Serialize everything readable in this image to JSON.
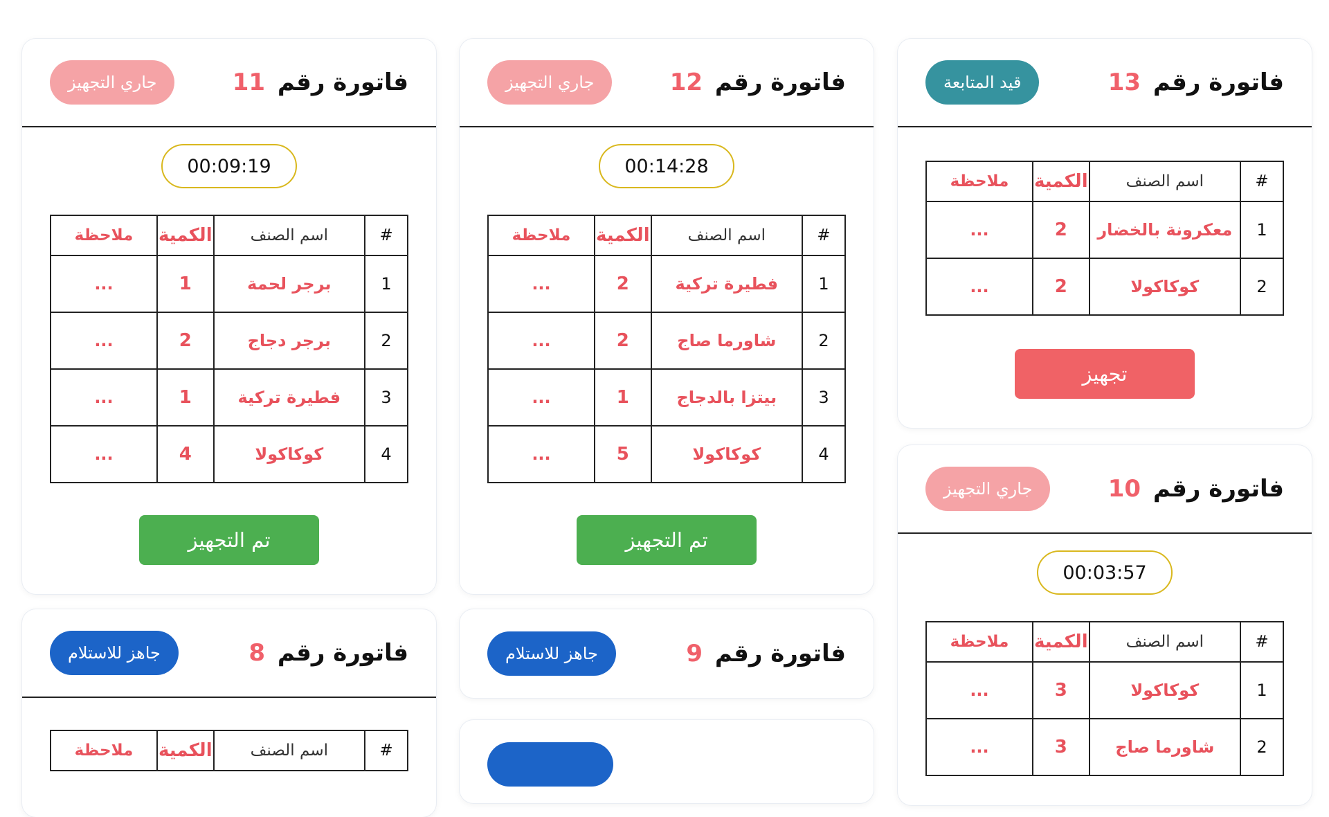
{
  "cards": {
    "c11": {
      "title": "فاتورة رقم",
      "number": "11",
      "status": "جاري التجهيز",
      "timer": "00:09:19",
      "headers": {
        "idx": "#",
        "name": "اسم الصنف",
        "qty": "الكمية",
        "note": "ملاحظة"
      },
      "rows": [
        {
          "idx": "1",
          "name": "برجر لحمة",
          "qty": "1",
          "note": "..."
        },
        {
          "idx": "2",
          "name": "برجر دجاج",
          "qty": "2",
          "note": "..."
        },
        {
          "idx": "3",
          "name": "فطيرة تركية",
          "qty": "1",
          "note": "..."
        },
        {
          "idx": "4",
          "name": "كوكاكولا",
          "qty": "4",
          "note": "..."
        }
      ],
      "button": "تم التجهيز"
    },
    "c12": {
      "title": "فاتورة رقم",
      "number": "12",
      "status": "جاري التجهيز",
      "timer": "00:14:28",
      "headers": {
        "idx": "#",
        "name": "اسم الصنف",
        "qty": "الكمية",
        "note": "ملاحظة"
      },
      "rows": [
        {
          "idx": "1",
          "name": "فطيرة تركية",
          "qty": "2",
          "note": "..."
        },
        {
          "idx": "2",
          "name": "شاورما صاج",
          "qty": "2",
          "note": "..."
        },
        {
          "idx": "3",
          "name": "بيتزا بالدجاج",
          "qty": "1",
          "note": "..."
        },
        {
          "idx": "4",
          "name": "كوكاكولا",
          "qty": "5",
          "note": "..."
        }
      ],
      "button": "تم التجهيز"
    },
    "c13": {
      "title": "فاتورة رقم",
      "number": "13",
      "status": "قيد المتابعة",
      "headers": {
        "idx": "#",
        "name": "اسم الصنف",
        "qty": "الكمية",
        "note": "ملاحظة"
      },
      "rows": [
        {
          "idx": "1",
          "name": "معكرونة بالخضار",
          "qty": "2",
          "note": "..."
        },
        {
          "idx": "2",
          "name": "كوكاكولا",
          "qty": "2",
          "note": "..."
        }
      ],
      "button": "تجهيز"
    },
    "c10": {
      "title": "فاتورة رقم",
      "number": "10",
      "status": "جاري التجهيز",
      "timer": "00:03:57",
      "headers": {
        "idx": "#",
        "name": "اسم الصنف",
        "qty": "الكمية",
        "note": "ملاحظة"
      },
      "rows": [
        {
          "idx": "1",
          "name": "كوكاكولا",
          "qty": "3",
          "note": "..."
        },
        {
          "idx": "2",
          "name": "شاورما صاج",
          "qty": "3",
          "note": "..."
        }
      ]
    },
    "c8": {
      "title": "فاتورة رقم",
      "number": "8",
      "status": "جاهز للاستلام",
      "headers": {
        "idx": "#",
        "name": "اسم الصنف",
        "qty": "الكمية",
        "note": "ملاحظة"
      }
    },
    "c9": {
      "title": "فاتورة رقم",
      "number": "9",
      "status": "جاهز للاستلام"
    }
  },
  "colors": {
    "accent": "#f0606a",
    "preparing": "#f5a3a6",
    "tracking": "#36939f",
    "ready": "#1c64c8",
    "done_button": "#4caf50",
    "prepare_button": "#f06266",
    "timer_border": "#d9b81e"
  }
}
